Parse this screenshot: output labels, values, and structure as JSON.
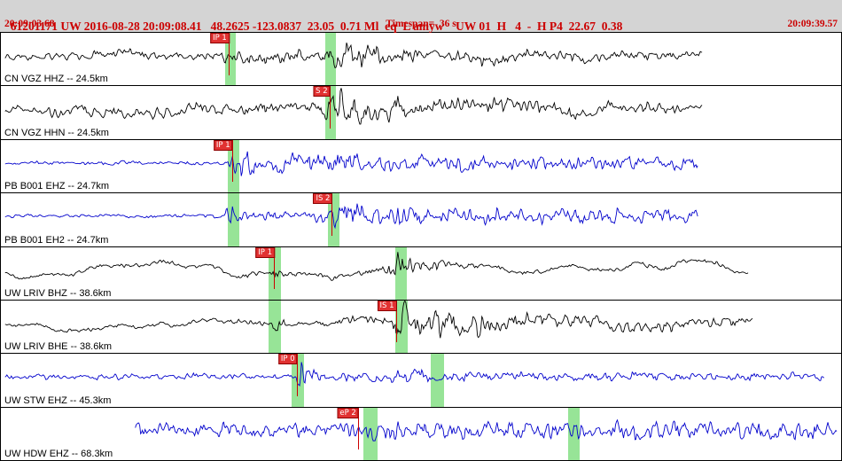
{
  "header": {
    "line1": "61201171 UW 2016-08-28 20:09:08.41   48.2625 -123.0837  23.05  0.71 Ml  eq  L amyw    UW 01  H   4  -  H P4  22.67  0.38",
    "start_time": "20:09:03.68",
    "timespan": "Timespan=  36 s",
    "end_time": "20:09:39.57"
  },
  "colors": {
    "annotation_red": "#cc0000",
    "black": "#000000",
    "blue": "#0000cc",
    "band_green": "#97e497",
    "pick_bg": "#e13232"
  },
  "traces": [
    {
      "label": "CN VGZ HHZ -- 24.5km",
      "color": "black",
      "start": 0.5,
      "end": 83.5,
      "seed": 11,
      "lp": 50,
      "env": [
        [
          0,
          8,
          0.45
        ],
        [
          25,
          9,
          0.45
        ],
        [
          27,
          11,
          0.65
        ],
        [
          37,
          11,
          0.6
        ],
        [
          38.5,
          9,
          0.7
        ],
        [
          39.5,
          18,
          0.95
        ],
        [
          43,
          16,
          0.9
        ],
        [
          47,
          12,
          0.75
        ],
        [
          52,
          10,
          0.55
        ],
        [
          58,
          11,
          0.5
        ],
        [
          66,
          12,
          0.45
        ],
        [
          78,
          11,
          0.45
        ],
        [
          84,
          9,
          0.45
        ]
      ],
      "picks": [
        {
          "label": "IP 1",
          "p": 27.2
        }
      ],
      "bands": [
        {
          "p": 26.7,
          "w": 1.3
        },
        {
          "p": 38.6,
          "w": 1.3
        }
      ]
    },
    {
      "label": "CN VGZ HHN -- 24.5km",
      "color": "black",
      "start": 0.5,
      "end": 83.5,
      "seed": 22,
      "lp": 58,
      "env": [
        [
          0,
          11,
          0.35
        ],
        [
          15,
          14,
          0.4
        ],
        [
          30,
          13,
          0.45
        ],
        [
          37,
          12,
          0.5
        ],
        [
          39,
          24,
          0.95
        ],
        [
          42,
          22,
          0.9
        ],
        [
          46,
          18,
          0.8
        ],
        [
          52,
          14,
          0.55
        ],
        [
          62,
          15,
          0.45
        ],
        [
          75,
          14,
          0.4
        ],
        [
          84,
          11,
          0.4
        ]
      ],
      "picks": [
        {
          "label": "S 2",
          "p": 39.2
        }
      ],
      "bands": [
        {
          "p": 38.6,
          "w": 1.3
        }
      ]
    },
    {
      "label": "PB B001 EHZ -- 24.7km",
      "color": "blue",
      "start": 0.5,
      "end": 83,
      "seed": 33,
      "lp": 30,
      "env": [
        [
          0,
          3,
          0.55
        ],
        [
          26.5,
          3,
          0.6
        ],
        [
          27.3,
          13,
          1
        ],
        [
          30,
          12,
          1
        ],
        [
          34,
          9,
          1
        ],
        [
          38,
          11,
          1
        ],
        [
          43,
          9,
          1
        ],
        [
          52,
          8,
          1
        ],
        [
          65,
          7,
          1
        ],
        [
          83,
          6,
          1
        ]
      ],
      "picks": [
        {
          "label": "IP 1",
          "p": 27.6
        }
      ],
      "bands": [
        {
          "p": 27.0,
          "w": 1.4
        }
      ]
    },
    {
      "label": "PB B001 EH2 -- 24.7km",
      "color": "blue",
      "start": 0.5,
      "end": 83,
      "seed": 44,
      "lp": 30,
      "env": [
        [
          0,
          2.5,
          0.55
        ],
        [
          26.6,
          2.5,
          0.7
        ],
        [
          27.1,
          15,
          1
        ],
        [
          28.3,
          5,
          1
        ],
        [
          33,
          5,
          1
        ],
        [
          38.8,
          6,
          1
        ],
        [
          39.6,
          15,
          1
        ],
        [
          43,
          12,
          1
        ],
        [
          50,
          9,
          1
        ],
        [
          62,
          8,
          1
        ],
        [
          83,
          6,
          1
        ]
      ],
      "picks": [
        {
          "label": "IS 2",
          "p": 39.5
        }
      ],
      "bands": [
        {
          "p": 27.0,
          "w": 1.4
        },
        {
          "p": 38.9,
          "w": 1.4
        }
      ]
    },
    {
      "label": "UW LRIV BHZ -- 38.6km",
      "color": "black",
      "start": 0.5,
      "end": 89,
      "seed": 55,
      "lp": 72,
      "env": [
        [
          0,
          10,
          0.15
        ],
        [
          20,
          11,
          0.18
        ],
        [
          31.8,
          11,
          0.2
        ],
        [
          32.6,
          13,
          0.6
        ],
        [
          34,
          11,
          0.22
        ],
        [
          45.5,
          11,
          0.3
        ],
        [
          47.3,
          20,
          0.9
        ],
        [
          49.5,
          15,
          0.6
        ],
        [
          53,
          13,
          0.3
        ],
        [
          60,
          14,
          0.2
        ],
        [
          75,
          14,
          0.18
        ],
        [
          89,
          11,
          0.18
        ]
      ],
      "picks": [
        {
          "label": "IP 1",
          "p": 32.6
        }
      ],
      "bands": [
        {
          "p": 31.9,
          "w": 1.4
        },
        {
          "p": 46.9,
          "w": 1.4
        }
      ]
    },
    {
      "label": "UW LRIV BHE -- 38.6km",
      "color": "black",
      "start": 0.5,
      "end": 89.5,
      "seed": 66,
      "lp": 60,
      "env": [
        [
          0,
          8,
          0.2
        ],
        [
          20,
          9,
          0.25
        ],
        [
          31.8,
          8,
          0.3
        ],
        [
          32.7,
          13,
          0.7
        ],
        [
          34,
          9,
          0.3
        ],
        [
          46.3,
          10,
          0.45
        ],
        [
          47.6,
          24,
          0.95
        ],
        [
          50,
          20,
          0.85
        ],
        [
          55,
          17,
          0.7
        ],
        [
          62,
          15,
          0.6
        ],
        [
          72,
          13,
          0.5
        ],
        [
          82,
          11,
          0.45
        ],
        [
          90,
          9,
          0.4
        ]
      ],
      "picks": [
        {
          "label": "IS 1",
          "p": 47.1
        }
      ],
      "bands": [
        {
          "p": 31.9,
          "w": 1.4
        },
        {
          "p": 46.9,
          "w": 1.5
        }
      ]
    },
    {
      "label": "UW STW EHZ -- 45.3km",
      "color": "blue",
      "start": 0.5,
      "end": 98,
      "seed": 77,
      "lp": 26,
      "env": [
        [
          0,
          4,
          0.75
        ],
        [
          34.7,
          4,
          0.75
        ],
        [
          35.4,
          15,
          1
        ],
        [
          36.6,
          8,
          1
        ],
        [
          40,
          6,
          0.95
        ],
        [
          46,
          6,
          0.9
        ],
        [
          51,
          7,
          1
        ],
        [
          54,
          6,
          0.9
        ],
        [
          65,
          5,
          0.85
        ],
        [
          80,
          5,
          0.8
        ],
        [
          98,
          5,
          0.8
        ]
      ],
      "picks": [
        {
          "label": "IP 0",
          "p": 35.3
        }
      ],
      "bands": [
        {
          "p": 34.6,
          "w": 1.5
        },
        {
          "p": 51.2,
          "w": 1.5
        }
      ]
    },
    {
      "label": "UW HDW EHZ -- 68.3km",
      "color": "blue",
      "start": 16,
      "end": 99.5,
      "seed": 88,
      "lp": 22,
      "env": [
        [
          16,
          7,
          1
        ],
        [
          30,
          8,
          1
        ],
        [
          42.4,
          8,
          1
        ],
        [
          43,
          18,
          1
        ],
        [
          44.5,
          12,
          1
        ],
        [
          48,
          9,
          1
        ],
        [
          56,
          9,
          1
        ],
        [
          66,
          9,
          1
        ],
        [
          69,
          10,
          1
        ],
        [
          80,
          9,
          1
        ],
        [
          92,
          9,
          1
        ],
        [
          99.5,
          8,
          1
        ]
      ],
      "picks": [
        {
          "label": "eP 2",
          "p": 42.6
        }
      ],
      "bands": [
        {
          "p": 43.1,
          "w": 1.7
        },
        {
          "p": 67.5,
          "w": 1.4
        }
      ]
    }
  ]
}
